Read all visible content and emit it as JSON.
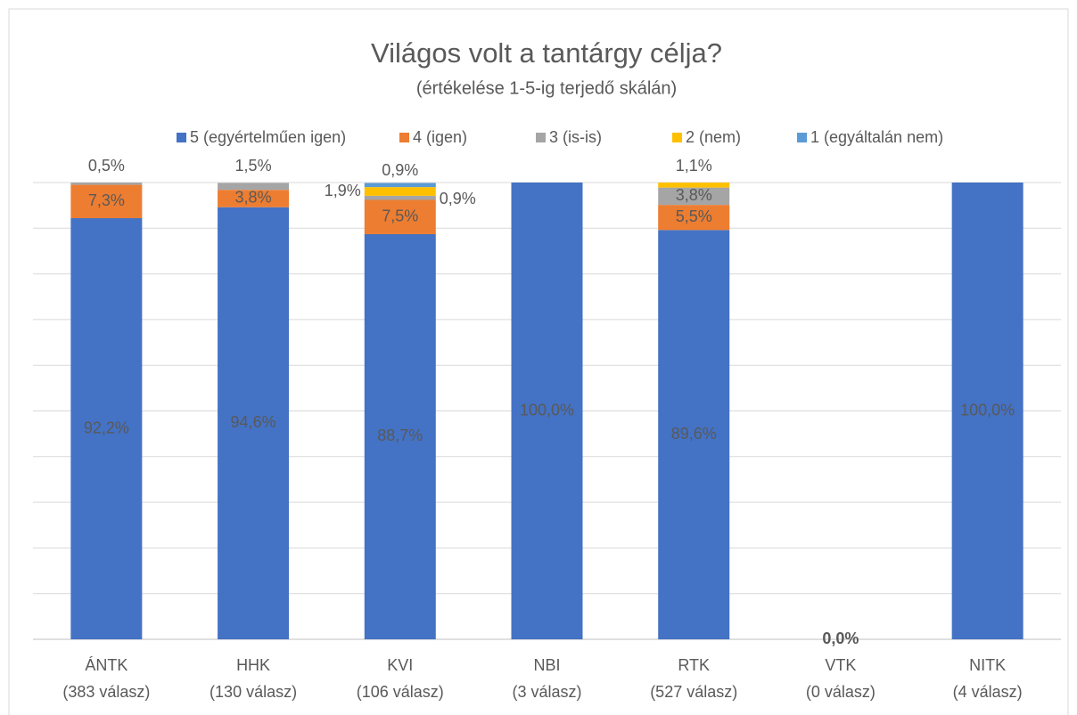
{
  "chart_data": {
    "type": "stacked_bar",
    "title": "Világos volt a tantárgy célja?",
    "subtitle": "(értékelése 1-5-ig terjedő skálán)",
    "categories": [
      [
        "ÁNTK",
        "(383 válasz)"
      ],
      [
        "HHK",
        "(130 válasz)"
      ],
      [
        "KVI",
        "(106 válasz)"
      ],
      [
        "NBI",
        "(3 válasz)"
      ],
      [
        "RTK",
        "(527 válasz)"
      ],
      [
        "VTK",
        "(0 válasz)"
      ],
      [
        "NITK",
        "(4 válasz)"
      ]
    ],
    "series": [
      {
        "name": "5 (egyértelműen igen)",
        "color": "#4472c4",
        "values": [
          92.2,
          94.6,
          88.7,
          100,
          89.6,
          0,
          100
        ],
        "value_labels": [
          "92,2%",
          "94,6%",
          "88,7%",
          "100,0%",
          "89,6%",
          "0,0%",
          "100,0%"
        ]
      },
      {
        "name": "4 (igen)",
        "color": "#ed7d31",
        "values": [
          7.3,
          3.8,
          7.5,
          0,
          5.5,
          0,
          0
        ],
        "value_labels": [
          "7,3%",
          "3,8%",
          "7,5%",
          null,
          "5,5%",
          null,
          null
        ]
      },
      {
        "name": "3 (is-is)",
        "color": "#a5a5a5",
        "values": [
          0.5,
          1.5,
          0.9,
          0,
          3.8,
          0,
          0
        ],
        "value_labels": [
          "0,5%",
          "1,5%",
          "0,9%",
          null,
          "3,8%",
          null,
          null
        ]
      },
      {
        "name": "2 (nem)",
        "color": "#ffc000",
        "values": [
          0,
          0,
          1.9,
          0,
          1.1,
          0,
          0
        ],
        "value_labels": [
          null,
          null,
          "1,9%",
          null,
          "1,1%",
          null,
          null
        ]
      },
      {
        "name": "1 (egyáltalán nem)",
        "color": "#5b9bd5",
        "values": [
          0,
          0,
          0.9,
          0,
          0,
          0,
          0
        ],
        "value_labels": [
          null,
          null,
          "0,9%",
          null,
          null,
          null,
          null
        ]
      }
    ],
    "ylim": [
      0,
      100
    ],
    "yticks": [
      0,
      10,
      20,
      30,
      40,
      50,
      60,
      70,
      80,
      90,
      100
    ],
    "grid": true,
    "legend": "top"
  }
}
